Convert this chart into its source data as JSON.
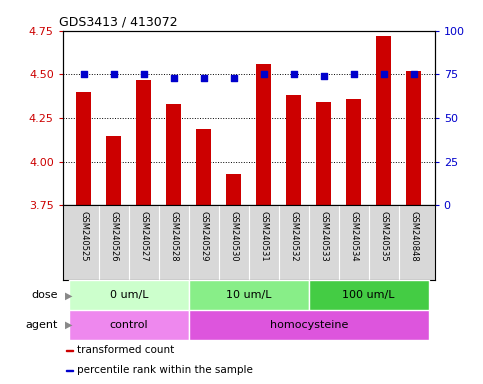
{
  "title": "GDS3413 / 413072",
  "samples": [
    "GSM240525",
    "GSM240526",
    "GSM240527",
    "GSM240528",
    "GSM240529",
    "GSM240530",
    "GSM240531",
    "GSM240532",
    "GSM240533",
    "GSM240534",
    "GSM240535",
    "GSM240848"
  ],
  "transformed_count": [
    4.4,
    4.15,
    4.47,
    4.33,
    4.19,
    3.93,
    4.56,
    4.38,
    4.34,
    4.36,
    4.72,
    4.52
  ],
  "percentile_rank": [
    75,
    75,
    75,
    73,
    73,
    73,
    75,
    75,
    74,
    75,
    75,
    75
  ],
  "ylim_left": [
    3.75,
    4.75
  ],
  "ylim_right": [
    0,
    100
  ],
  "yticks_left": [
    3.75,
    4.0,
    4.25,
    4.5,
    4.75
  ],
  "yticks_right": [
    0,
    25,
    50,
    75,
    100
  ],
  "bar_color": "#cc0000",
  "dot_color": "#0000cc",
  "bar_width": 0.5,
  "dose_groups": [
    {
      "label": "0 um/L",
      "start": 0,
      "end": 3,
      "color": "#ccffcc"
    },
    {
      "label": "10 um/L",
      "start": 4,
      "end": 7,
      "color": "#88ee88"
    },
    {
      "label": "100 um/L",
      "start": 8,
      "end": 11,
      "color": "#44cc44"
    }
  ],
  "agent_groups": [
    {
      "label": "control",
      "start": 0,
      "end": 3,
      "color": "#ee88ee"
    },
    {
      "label": "homocysteine",
      "start": 4,
      "end": 11,
      "color": "#dd55dd"
    }
  ],
  "dose_label": "dose",
  "agent_label": "agent",
  "legend_items": [
    {
      "label": "transformed count",
      "color": "#cc0000"
    },
    {
      "label": "percentile rank within the sample",
      "color": "#0000cc"
    }
  ],
  "grid_linestyle": "dotted",
  "tick_color_left": "#cc0000",
  "tick_color_right": "#0000cc",
  "bg_plot": "#ffffff",
  "bg_sample": "#d8d8d8",
  "sample_box_edge": "#aaaaaa"
}
